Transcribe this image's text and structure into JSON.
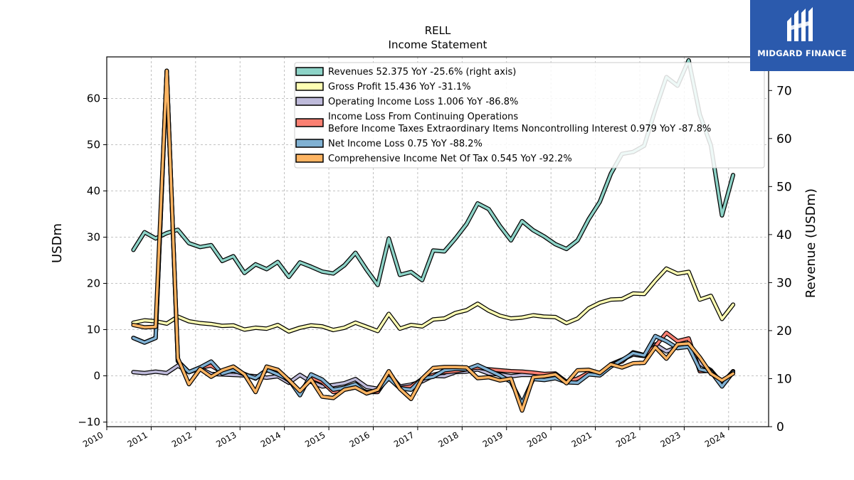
{
  "chart_data": {
    "type": "line",
    "title": "RELL",
    "subtitle": "Income Statement",
    "ylabel": "USDm",
    "ylabel_right": "Revenue (USDm)",
    "ylim": [
      -11,
      69
    ],
    "ylim_right": [
      0,
      77
    ],
    "yticks": [
      -10,
      0,
      10,
      20,
      30,
      40,
      50,
      60
    ],
    "yticks_right": [
      0,
      10,
      20,
      30,
      40,
      50,
      60,
      70
    ],
    "xlim": [
      2010.0,
      2024.9
    ],
    "xticks": [
      "2010",
      "2011",
      "2012",
      "2013",
      "2014",
      "2015",
      "2016",
      "2017",
      "2018",
      "2019",
      "2020",
      "2021",
      "2022",
      "2023",
      "2024"
    ],
    "grid": true,
    "legend_position": "top-right",
    "series": [
      {
        "name": "Revenues  52.375 YoY -25.6% (right axis)",
        "axis": "right",
        "color": "#8dd3c7",
        "x": [
          2010.6,
          2010.85,
          2011.1,
          2011.35,
          2011.6,
          2011.85,
          2012.1,
          2012.35,
          2012.6,
          2012.85,
          2013.1,
          2013.35,
          2013.6,
          2013.85,
          2014.1,
          2014.35,
          2014.6,
          2014.85,
          2015.1,
          2015.35,
          2015.6,
          2015.85,
          2016.1,
          2016.35,
          2016.6,
          2016.85,
          2017.1,
          2017.35,
          2017.6,
          2017.85,
          2018.1,
          2018.35,
          2018.6,
          2018.85,
          2019.1,
          2019.35,
          2019.6,
          2019.85,
          2020.1,
          2020.35,
          2020.6,
          2020.85,
          2021.1,
          2021.35,
          2021.6,
          2021.85,
          2022.1,
          2022.35,
          2022.6,
          2022.85,
          2023.1,
          2023.35,
          2023.6,
          2023.85,
          2024.1
        ],
        "values": [
          36.8,
          40.5,
          39.2,
          40.3,
          41.0,
          38.2,
          37.4,
          37.8,
          34.5,
          35.5,
          32.0,
          33.8,
          32.8,
          34.3,
          31.2,
          34.2,
          33.3,
          32.3,
          31.9,
          33.6,
          36.2,
          32.7,
          29.5,
          39.2,
          31.6,
          32.2,
          30.5,
          36.7,
          36.5,
          39.2,
          42.2,
          46.5,
          45.3,
          41.8,
          38.8,
          42.8,
          40.9,
          39.6,
          38.0,
          37.0,
          38.8,
          43.2,
          46.8,
          52.7,
          56.8,
          57.2,
          58.5,
          66.0,
          72.8,
          71.0,
          76.3,
          65.0,
          58.6,
          44.0,
          52.4
        ]
      },
      {
        "name": "Gross Profit  15.436 YoY -31.1%",
        "axis": "left",
        "color": "#ffffb3",
        "x": [
          2010.6,
          2010.85,
          2011.1,
          2011.35,
          2011.6,
          2011.85,
          2012.1,
          2012.35,
          2012.6,
          2012.85,
          2013.1,
          2013.35,
          2013.6,
          2013.85,
          2014.1,
          2014.35,
          2014.6,
          2014.85,
          2015.1,
          2015.35,
          2015.6,
          2015.85,
          2016.1,
          2016.35,
          2016.6,
          2016.85,
          2017.1,
          2017.35,
          2017.6,
          2017.85,
          2018.1,
          2018.35,
          2018.6,
          2018.85,
          2019.1,
          2019.35,
          2019.6,
          2019.85,
          2020.1,
          2020.35,
          2020.6,
          2020.85,
          2021.1,
          2021.35,
          2021.6,
          2021.85,
          2022.1,
          2022.35,
          2022.6,
          2022.85,
          2023.1,
          2023.35,
          2023.6,
          2023.85,
          2024.1
        ],
        "values": [
          11.5,
          12.0,
          11.8,
          11.3,
          12.8,
          11.8,
          11.4,
          11.2,
          10.8,
          10.9,
          10.0,
          10.4,
          10.2,
          11.0,
          9.6,
          10.4,
          10.9,
          10.7,
          9.9,
          10.4,
          11.5,
          10.6,
          9.7,
          13.4,
          10.2,
          11.0,
          10.7,
          12.2,
          12.4,
          13.6,
          14.2,
          15.6,
          14.1,
          13.0,
          12.4,
          12.6,
          13.1,
          12.8,
          12.7,
          11.4,
          12.4,
          14.6,
          15.8,
          16.5,
          16.6,
          17.8,
          17.7,
          20.6,
          23.2,
          22.1,
          22.5,
          16.5,
          17.3,
          12.3,
          15.4
        ]
      },
      {
        "name": "Operating Income Loss  1.006 YoY -86.8%",
        "axis": "left",
        "color": "#bebada",
        "x": [
          2010.6,
          2010.85,
          2011.1,
          2011.35,
          2011.6,
          2011.85,
          2012.1,
          2012.35,
          2012.6,
          2012.85,
          2013.1,
          2013.35,
          2013.6,
          2013.85,
          2014.1,
          2014.35,
          2014.6,
          2014.85,
          2015.1,
          2015.35,
          2015.6,
          2015.85,
          2016.1,
          2016.35,
          2016.6,
          2016.85,
          2017.1,
          2017.35,
          2017.6,
          2017.85,
          2018.1,
          2018.35,
          2018.6,
          2018.85,
          2019.1,
          2019.35,
          2019.6,
          2019.85,
          2020.1,
          2020.35,
          2020.6,
          2020.85,
          2021.1,
          2021.35,
          2021.6,
          2021.85,
          2022.1,
          2022.35,
          2022.6,
          2022.85,
          2023.1,
          2023.35,
          2023.6,
          2023.85,
          2024.1
        ],
        "values": [
          0.8,
          0.6,
          0.9,
          0.6,
          2.2,
          0.8,
          1.6,
          0.4,
          0.3,
          0.2,
          0.1,
          -0.1,
          -0.4,
          -0.1,
          -1.5,
          0.2,
          -1.3,
          -2.3,
          -2.0,
          -1.6,
          -0.7,
          -2.4,
          -2.8,
          0.6,
          -2.3,
          -1.9,
          -1.2,
          0.0,
          -0.1,
          0.8,
          0.9,
          1.4,
          0.5,
          0.3,
          -0.1,
          0.2,
          0.2,
          0.0,
          0.3,
          -1.3,
          -1.0,
          0.8,
          0.3,
          2.5,
          3.5,
          4.6,
          4.3,
          6.8,
          5.3,
          6.2,
          6.3,
          2.7,
          1.2,
          -1.6,
          1.0
        ]
      },
      {
        "name": "Income Loss From Continuing Operations Before Income Taxes Extraordinary Items Noncontrolling Interest  0.979 YoY -87.8%",
        "axis": "left",
        "color": "#fb8072",
        "x": [
          2010.6,
          2010.85,
          2011.1,
          2011.35,
          2011.6,
          2011.85,
          2012.1,
          2012.35,
          2012.6,
          2012.85,
          2013.1,
          2013.35,
          2013.6,
          2013.85,
          2014.1,
          2014.35,
          2014.6,
          2014.85,
          2015.1,
          2015.35,
          2015.6,
          2015.85,
          2016.1,
          2016.35,
          2016.6,
          2016.85,
          2017.1,
          2017.35,
          2017.6,
          2017.85,
          2018.1,
          2018.35,
          2018.6,
          2018.85,
          2019.1,
          2019.35,
          2019.6,
          2019.85,
          2020.1,
          2020.35,
          2020.6,
          2020.85,
          2021.1,
          2021.35,
          2021.6,
          2021.85,
          2022.1,
          2022.35,
          2022.6,
          2022.85,
          2023.1,
          2023.35,
          2023.6,
          2023.85,
          2024.1
        ],
        "values": [
          8.2,
          7.2,
          8.2,
          66,
          3.2,
          0.8,
          1.8,
          2.2,
          0.8,
          1.4,
          0.4,
          -0.6,
          1.2,
          0.6,
          -1.0,
          -3.5,
          -0.4,
          -1.3,
          -3.5,
          -3.0,
          -2.5,
          -3.5,
          -3.5,
          0.0,
          -2.6,
          -2.3,
          -0.7,
          0.2,
          0.8,
          1.0,
          1.4,
          1.8,
          1.4,
          1.2,
          1.0,
          0.9,
          0.7,
          0.4,
          0.5,
          -1.3,
          -0.6,
          0.7,
          0.3,
          2.5,
          3.1,
          5.1,
          4.5,
          6.4,
          9.3,
          7.5,
          8.1,
          1.0,
          1.1,
          -2.0,
          1.0
        ]
      },
      {
        "name": "Net Income Loss  0.75 YoY -88.2%",
        "axis": "left",
        "color": "#80b1d3",
        "x": [
          2010.6,
          2010.85,
          2011.1,
          2011.35,
          2011.6,
          2011.85,
          2012.1,
          2012.35,
          2012.6,
          2012.85,
          2013.1,
          2013.35,
          2013.6,
          2013.85,
          2014.1,
          2014.35,
          2014.6,
          2014.85,
          2015.1,
          2015.35,
          2015.6,
          2015.85,
          2016.1,
          2016.35,
          2016.6,
          2016.85,
          2017.1,
          2017.35,
          2017.6,
          2017.85,
          2018.1,
          2018.35,
          2018.6,
          2018.85,
          2019.1,
          2019.35,
          2019.6,
          2019.85,
          2020.1,
          2020.35,
          2020.6,
          2020.85,
          2021.1,
          2021.35,
          2021.6,
          2021.85,
          2022.1,
          2022.35,
          2022.6,
          2022.85,
          2023.1,
          2023.35,
          2023.6,
          2023.85,
          2024.1
        ],
        "values": [
          8.2,
          7.2,
          8.2,
          66,
          3.2,
          0.8,
          1.8,
          3.1,
          0.5,
          1.2,
          0.3,
          -0.5,
          1.3,
          0.3,
          -0.8,
          -4.2,
          0.3,
          -0.8,
          -3.0,
          -2.6,
          -1.8,
          -3.8,
          -3.1,
          -0.5,
          -2.7,
          -3.0,
          -0.6,
          -0.2,
          1.2,
          1.5,
          1.4,
          2.3,
          1.2,
          0.1,
          -1.3,
          -6.0,
          -0.7,
          -0.9,
          -0.5,
          -1.4,
          -1.5,
          0.3,
          0.1,
          2.0,
          3.4,
          4.9,
          4.4,
          8.6,
          7.5,
          6.0,
          6.3,
          1.4,
          0.9,
          -2.3,
          0.8
        ]
      },
      {
        "name": "Comprehensive Income Net Of Tax  0.545 YoY -92.2%",
        "axis": "left",
        "color": "#fdb462",
        "x": [
          2010.6,
          2010.85,
          2011.1,
          2011.35,
          2011.6,
          2011.85,
          2012.1,
          2012.35,
          2012.6,
          2012.85,
          2013.1,
          2013.35,
          2013.6,
          2013.85,
          2014.1,
          2014.35,
          2014.6,
          2014.85,
          2015.1,
          2015.35,
          2015.6,
          2015.85,
          2016.1,
          2016.35,
          2016.6,
          2016.85,
          2017.1,
          2017.35,
          2017.6,
          2017.85,
          2018.1,
          2018.35,
          2018.6,
          2018.85,
          2019.1,
          2019.35,
          2019.6,
          2019.85,
          2020.1,
          2020.35,
          2020.6,
          2020.85,
          2021.1,
          2021.35,
          2021.6,
          2021.85,
          2022.1,
          2022.35,
          2022.6,
          2022.85,
          2023.1,
          2023.35,
          2023.6,
          2023.85,
          2024.1
        ],
        "values": [
          11.0,
          10.5,
          10.6,
          66,
          3.8,
          -1.8,
          1.5,
          -0.2,
          1.2,
          2.0,
          0.3,
          -3.5,
          2.0,
          1.3,
          -0.9,
          -3.3,
          -0.8,
          -4.5,
          -4.8,
          -3.0,
          -2.5,
          -3.8,
          -3.0,
          1.0,
          -2.8,
          -5.0,
          -0.6,
          1.7,
          1.9,
          1.9,
          1.8,
          -0.5,
          -0.3,
          -1.0,
          -0.6,
          -7.5,
          -0.3,
          -0.1,
          0.3,
          -1.6,
          1.2,
          1.3,
          0.6,
          2.5,
          1.8,
          2.7,
          2.8,
          6.2,
          3.7,
          6.8,
          7.0,
          4.0,
          0.5,
          -1.0,
          0.5
        ]
      }
    ]
  },
  "logo": {
    "text": "MIDGARD FINANCE"
  }
}
